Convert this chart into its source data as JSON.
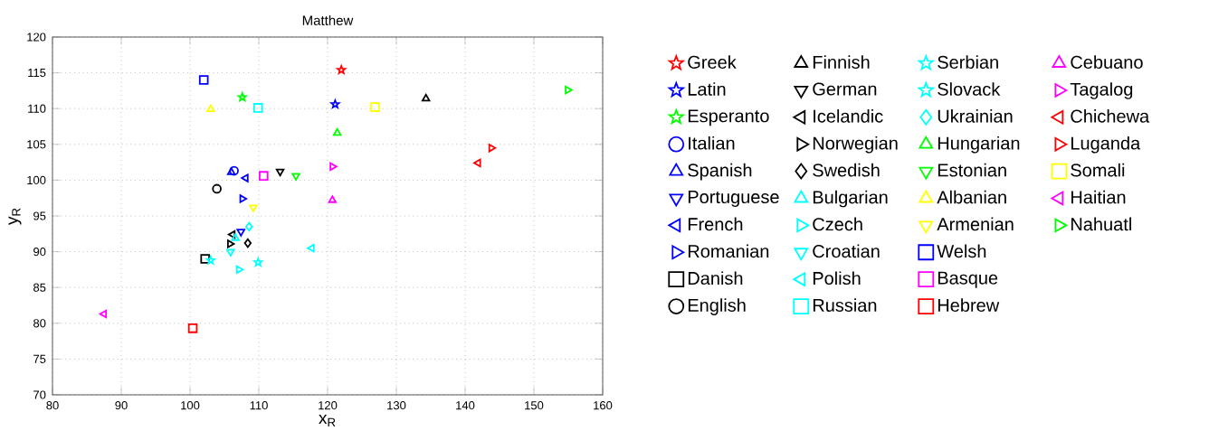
{
  "chart_data": {
    "type": "scatter",
    "title": "Matthew",
    "xlabel": "x$_{R}$",
    "ylabel": "y$_{R}$",
    "xlim": [
      80,
      160
    ],
    "ylim": [
      70,
      120
    ],
    "xticks": [
      80,
      90,
      100,
      110,
      120,
      130,
      140,
      150,
      160
    ],
    "yticks": [
      70,
      75,
      80,
      85,
      90,
      95,
      100,
      105,
      110,
      115,
      120
    ],
    "grid": true,
    "legend": "right",
    "series": [
      {
        "name": "Greek",
        "color": "#ff0000",
        "marker": "star",
        "x": [
          122.0
        ],
        "values": [
          115.4
        ]
      },
      {
        "name": "Latin",
        "color": "#0000ff",
        "marker": "star",
        "x": [
          121.1
        ],
        "values": [
          110.6
        ]
      },
      {
        "name": "Esperanto",
        "color": "#00ff00",
        "marker": "star",
        "x": [
          107.6
        ],
        "values": [
          111.6
        ]
      },
      {
        "name": "Italian",
        "color": "#0000ff",
        "marker": "circle",
        "x": [
          106.4
        ],
        "values": [
          101.3
        ]
      },
      {
        "name": "Spanish",
        "color": "#0000ff",
        "marker": "triangle",
        "x": [
          106.0
        ],
        "values": [
          101.1
        ]
      },
      {
        "name": "Portuguese",
        "color": "#0000ff",
        "marker": "triangle-down",
        "x": [
          107.4
        ],
        "values": [
          92.8
        ]
      },
      {
        "name": "French",
        "color": "#0000ff",
        "marker": "triangle-left",
        "x": [
          108.1
        ],
        "values": [
          100.3
        ]
      },
      {
        "name": "Romanian",
        "color": "#0000ff",
        "marker": "triangle-right",
        "x": [
          107.6
        ],
        "values": [
          97.4
        ]
      },
      {
        "name": "Danish",
        "color": "#000000",
        "marker": "square",
        "x": [
          102.2
        ],
        "values": [
          89.0
        ]
      },
      {
        "name": "English",
        "color": "#000000",
        "marker": "circle",
        "x": [
          103.9
        ],
        "values": [
          98.8
        ]
      },
      {
        "name": "Finnish",
        "color": "#000000",
        "marker": "triangle",
        "x": [
          134.3
        ],
        "values": [
          111.4
        ]
      },
      {
        "name": "German",
        "color": "#000000",
        "marker": "triangle-down",
        "x": [
          113.1
        ],
        "values": [
          101.2
        ]
      },
      {
        "name": "Icelandic",
        "color": "#000000",
        "marker": "triangle-left",
        "x": [
          106.2
        ],
        "values": [
          92.4
        ]
      },
      {
        "name": "Norwegian",
        "color": "#000000",
        "marker": "triangle-right",
        "x": [
          105.8
        ],
        "values": [
          91.1
        ]
      },
      {
        "name": "Swedish",
        "color": "#000000",
        "marker": "diamond",
        "x": [
          108.4
        ],
        "values": [
          91.2
        ]
      },
      {
        "name": "Bulgarian",
        "color": "#00ffff",
        "marker": "triangle",
        "x": [
          106.6
        ],
        "values": [
          91.9
        ]
      },
      {
        "name": "Czech",
        "color": "#00ffff",
        "marker": "triangle-right",
        "x": [
          107.1
        ],
        "values": [
          87.5
        ]
      },
      {
        "name": "Croatian",
        "color": "#00ffff",
        "marker": "triangle-down",
        "x": [
          105.9
        ],
        "values": [
          90.0
        ]
      },
      {
        "name": "Polish",
        "color": "#00ffff",
        "marker": "triangle-left",
        "x": [
          117.7
        ],
        "values": [
          90.5
        ]
      },
      {
        "name": "Russian",
        "color": "#00ffff",
        "marker": "square",
        "x": [
          109.9
        ],
        "values": [
          110.1
        ]
      },
      {
        "name": "Serbian",
        "color": "#00ffff",
        "marker": "star",
        "x": [
          103.0
        ],
        "values": [
          88.8
        ]
      },
      {
        "name": "Slovack",
        "color": "#00ffff",
        "marker": "star",
        "x": [
          109.9
        ],
        "values": [
          88.5
        ]
      },
      {
        "name": "Ukrainian",
        "color": "#00ffff",
        "marker": "diamond",
        "x": [
          108.6
        ],
        "values": [
          93.5
        ]
      },
      {
        "name": "Hungarian",
        "color": "#00ff00",
        "marker": "triangle",
        "x": [
          121.4
        ],
        "values": [
          106.6
        ]
      },
      {
        "name": "Estonian",
        "color": "#00ff00",
        "marker": "triangle-down",
        "x": [
          115.4
        ],
        "values": [
          100.6
        ]
      },
      {
        "name": "Albanian",
        "color": "#ffff00",
        "marker": "triangle",
        "x": [
          103.0
        ],
        "values": [
          109.9
        ]
      },
      {
        "name": "Armenian",
        "color": "#ffff00",
        "marker": "triangle-down",
        "x": [
          109.2
        ],
        "values": [
          96.2
        ]
      },
      {
        "name": "Welsh",
        "color": "#0000ff",
        "marker": "square",
        "x": [
          102.0
        ],
        "values": [
          114.0
        ]
      },
      {
        "name": "Basque",
        "color": "#ff00ff",
        "marker": "square",
        "x": [
          110.7
        ],
        "values": [
          100.6
        ]
      },
      {
        "name": "Hebrew",
        "color": "#ff0000",
        "marker": "square",
        "x": [
          100.4
        ],
        "values": [
          79.3
        ]
      },
      {
        "name": "Cebuano",
        "color": "#ff00ff",
        "marker": "triangle",
        "x": [
          120.7
        ],
        "values": [
          97.2
        ]
      },
      {
        "name": "Tagalog",
        "color": "#ff00ff",
        "marker": "triangle-right",
        "x": [
          120.7
        ],
        "values": [
          101.9
        ]
      },
      {
        "name": "Chichewa",
        "color": "#ff0000",
        "marker": "triangle-left",
        "x": [
          141.9
        ],
        "values": [
          102.4
        ]
      },
      {
        "name": "Luganda",
        "color": "#ff0000",
        "marker": "triangle-right",
        "x": [
          143.8
        ],
        "values": [
          104.5
        ]
      },
      {
        "name": "Somali",
        "color": "#ffff00",
        "marker": "square",
        "x": [
          126.9
        ],
        "values": [
          110.2
        ]
      },
      {
        "name": "Haitian",
        "color": "#ff00ff",
        "marker": "triangle-left",
        "x": [
          87.5
        ],
        "values": [
          81.3
        ]
      },
      {
        "name": "Nahuatl",
        "color": "#00ff00",
        "marker": "triangle-right",
        "x": [
          154.9
        ],
        "values": [
          112.6
        ]
      }
    ]
  }
}
